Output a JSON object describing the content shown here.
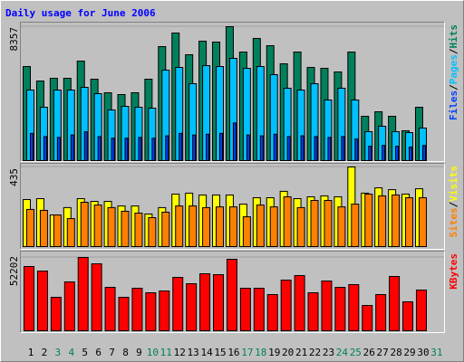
{
  "chart_data": [
    {
      "type": "bar",
      "title": "Daily usage for June 2006",
      "legend_separator": "/",
      "ylim": [
        0,
        8357
      ],
      "yticks": [
        8357
      ],
      "series": [
        {
          "name": "Hits",
          "color": "#00805c",
          "values": [
            5872,
            4969,
            5138,
            5138,
            6211,
            5082,
            4235,
            4122,
            4235,
            5082,
            7115,
            7962,
            6607,
            7453,
            7397,
            8357,
            6776,
            7623,
            7171,
            6042,
            6776,
            5816,
            5760,
            5534,
            6776,
            2767,
            3049,
            2767,
            1863,
            3331,
            null
          ]
        },
        {
          "name": "Pages",
          "color": "#00c0ff",
          "values": [
            4404,
            3331,
            4404,
            4404,
            4574,
            4178,
            3162,
            3388,
            3331,
            3275,
            5647,
            5816,
            4800,
            5929,
            5872,
            6381,
            5760,
            5872,
            5364,
            4517,
            4404,
            4800,
            3783,
            4517,
            3783,
            1807,
            2146,
            1807,
            1750,
            2033,
            null
          ]
        },
        {
          "name": "Files",
          "color": "#0040ff",
          "values": [
            1700,
            1500,
            1450,
            1600,
            1800,
            1500,
            1400,
            1400,
            1450,
            1400,
            1550,
            1700,
            1600,
            1650,
            1700,
            2350,
            1600,
            1550,
            1650,
            1500,
            1550,
            1500,
            1450,
            1500,
            1350,
            900,
            950,
            900,
            850,
            950,
            null
          ]
        }
      ]
    },
    {
      "type": "bar",
      "legend_separator": "/",
      "ylim": [
        0,
        435
      ],
      "yticks": [
        435
      ],
      "series": [
        {
          "name": "Visits",
          "color": "#ffff00",
          "values": [
            257,
            262,
            173,
            213,
            262,
            247,
            247,
            222,
            222,
            178,
            213,
            287,
            292,
            282,
            282,
            282,
            232,
            267,
            267,
            302,
            262,
            272,
            277,
            272,
            435,
            292,
            321,
            311,
            287,
            316,
            null
          ]
        },
        {
          "name": "Sites",
          "color": "#ff8000",
          "values": [
            203,
            198,
            173,
            153,
            242,
            227,
            213,
            193,
            183,
            158,
            188,
            222,
            222,
            213,
            217,
            217,
            163,
            227,
            217,
            272,
            213,
            252,
            252,
            217,
            232,
            287,
            277,
            282,
            267,
            267,
            null
          ]
        }
      ]
    },
    {
      "type": "bar",
      "ylim": [
        0,
        52202
      ],
      "yticks": [
        52202
      ],
      "categories": [
        "1",
        "2",
        "3",
        "4",
        "5",
        "6",
        "7",
        "8",
        "9",
        "10",
        "11",
        "12",
        "13",
        "14",
        "15",
        "16",
        "17",
        "18",
        "19",
        "20",
        "21",
        "22",
        "23",
        "24",
        "25",
        "26",
        "27",
        "28",
        "29",
        "30",
        "31"
      ],
      "category_colors": [
        "#000000",
        "#000000",
        "#00805c",
        "#00805c",
        "#000000",
        "#000000",
        "#000000",
        "#000000",
        "#000000",
        "#00805c",
        "#00805c",
        "#000000",
        "#000000",
        "#000000",
        "#000000",
        "#000000",
        "#00805c",
        "#00805c",
        "#000000",
        "#000000",
        "#000000",
        "#000000",
        "#000000",
        "#00805c",
        "#00805c",
        "#000000",
        "#000000",
        "#000000",
        "#000000",
        "#000000",
        "#00805c"
      ],
      "series": [
        {
          "name": "KBytes",
          "color": "#ff0000",
          "values": [
            45757,
            42535,
            23845,
            34800,
            52202,
            47690,
            30933,
            23845,
            30289,
            27067,
            28356,
            38023,
            33512,
            40601,
            39956,
            50913,
            30289,
            30289,
            25778,
            36089,
            39312,
            27067,
            35445,
            30933,
            32867,
            18045,
            25778,
            38667,
            20623,
            29000,
            null
          ]
        }
      ]
    }
  ]
}
